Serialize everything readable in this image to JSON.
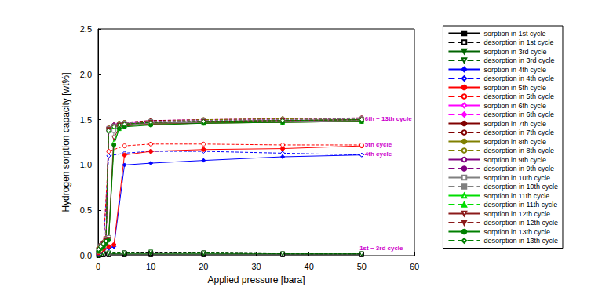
{
  "chart_data": {
    "type": "line",
    "x_label": "Applied pressure [bara]",
    "y_label": "Hydrogen sorption capacity [wt%]",
    "xlim": [
      0,
      60
    ],
    "xticks": [
      0,
      10,
      20,
      30,
      40,
      50,
      60
    ],
    "ylim": [
      0,
      2.5
    ],
    "yticks": [
      {
        "value": 0,
        "label": "0.0"
      },
      0.5,
      {
        "value": 1,
        "label": "1.0"
      },
      1.5,
      {
        "value": 2,
        "label": "2.0"
      },
      2.5
    ],
    "grid": false,
    "legend": "right",
    "annotations": [
      {
        "text": "6th ~ 13th cycle",
        "x": 50.6,
        "y": 1.51,
        "color": "#cc00cc"
      },
      {
        "text": "5th cycle",
        "x": 50.6,
        "y": 1.22,
        "color": "#cc00cc"
      },
      {
        "text": "4th cycle",
        "x": 50.6,
        "y": 1.12,
        "color": "#cc00cc"
      },
      {
        "text": "1st ~ 3rd cycle",
        "x": 49.6,
        "y": 0.08,
        "color": "#cc00cc"
      }
    ],
    "series": [
      {
        "name": "sorption in 1st cycle",
        "color": "#000000",
        "marker": "square",
        "line_style": "solid",
        "x": [
          0.1,
          0.5,
          1,
          2,
          5,
          10,
          20,
          35,
          50
        ],
        "values": [
          0.0,
          0.01,
          0.01,
          0.01,
          0.01,
          0.01,
          0.01,
          0.01,
          0.01
        ]
      },
      {
        "name": "desorption in 1st cycle",
        "color": "#000000",
        "marker": "square-open",
        "line_style": "dashed",
        "x": [
          0.1,
          0.5,
          1,
          2,
          5,
          10,
          20,
          35,
          50
        ],
        "values": [
          0.01,
          0.02,
          0.02,
          0.02,
          0.03,
          0.03,
          0.03,
          0.02,
          0.02
        ]
      },
      {
        "name": "sorption in 3rd cycle",
        "color": "#006400",
        "marker": "triangle-down",
        "line_style": "solid",
        "x": [
          0.1,
          0.5,
          1,
          2,
          5,
          10,
          20,
          35,
          50
        ],
        "values": [
          0.0,
          0.01,
          0.02,
          0.02,
          0.02,
          0.02,
          0.02,
          0.02,
          0.02
        ]
      },
      {
        "name": "desorption in 3rd cycle",
        "color": "#006400",
        "marker": "triangle-down-open",
        "line_style": "dashed",
        "x": [
          0.1,
          0.5,
          1,
          2,
          5,
          10,
          20,
          35,
          50
        ],
        "values": [
          0.01,
          0.02,
          0.03,
          0.03,
          0.03,
          0.04,
          0.03,
          0.02,
          0.02
        ]
      },
      {
        "name": "sorption in 4th cycle",
        "color": "#0000ff",
        "marker": "diamond",
        "line_style": "solid",
        "x": [
          0.1,
          0.5,
          1,
          2,
          3,
          5,
          10,
          20,
          35,
          50
        ],
        "values": [
          0.02,
          0.04,
          0.06,
          0.08,
          0.1,
          1.0,
          1.02,
          1.05,
          1.09,
          1.11
        ]
      },
      {
        "name": "desorption in 4th cycle",
        "color": "#0000ff",
        "marker": "diamond-open",
        "line_style": "dashed",
        "x": [
          0.1,
          0.5,
          1,
          2,
          5,
          10,
          20,
          35,
          50
        ],
        "values": [
          0.03,
          0.05,
          0.1,
          1.1,
          1.13,
          1.15,
          1.15,
          1.13,
          1.11
        ]
      },
      {
        "name": "sorption in 5th cycle",
        "color": "#ff0000",
        "marker": "circle",
        "line_style": "solid",
        "x": [
          0.1,
          0.5,
          1,
          2,
          3,
          5,
          10,
          20,
          35,
          50
        ],
        "values": [
          0.03,
          0.05,
          0.07,
          0.1,
          0.12,
          1.11,
          1.15,
          1.17,
          1.18,
          1.21
        ]
      },
      {
        "name": "desorption in 5th cycle",
        "color": "#ff0000",
        "marker": "circle-open",
        "line_style": "dashed",
        "x": [
          0.1,
          0.5,
          1,
          2,
          5,
          10,
          20,
          35,
          50
        ],
        "values": [
          0.04,
          0.06,
          0.12,
          1.15,
          1.21,
          1.23,
          1.23,
          1.22,
          1.22
        ]
      },
      {
        "name": "sorption in 6th cycle",
        "color": "#ff00ff",
        "marker": "diamond-open",
        "line_style": "solid",
        "x": [
          0.1,
          0.5,
          1,
          1.5,
          2,
          3,
          4,
          5,
          10,
          20,
          35,
          50
        ],
        "values": [
          0.05,
          0.1,
          0.14,
          0.17,
          1.4,
          1.43,
          1.45,
          1.46,
          1.47,
          1.48,
          1.49,
          1.5
        ]
      },
      {
        "name": "desorption in 6th cycle",
        "color": "#ff00ff",
        "marker": "diamond",
        "line_style": "dashed",
        "x": [
          0.1,
          0.5,
          1,
          1.5,
          2,
          3,
          4,
          5,
          10,
          20,
          35,
          50
        ],
        "values": [
          0.08,
          0.12,
          0.15,
          0.2,
          1.42,
          1.45,
          1.46,
          1.47,
          1.49,
          1.5,
          1.51,
          1.52
        ]
      },
      {
        "name": "sorption in 7th cycle",
        "color": "#800000",
        "marker": "circle",
        "line_style": "solid",
        "x": [
          0.1,
          0.5,
          1,
          1.5,
          2,
          3,
          4,
          5,
          10,
          20,
          35,
          50
        ],
        "values": [
          0.05,
          0.1,
          0.13,
          0.16,
          1.39,
          1.42,
          1.44,
          1.45,
          1.46,
          1.48,
          1.49,
          1.5
        ]
      },
      {
        "name": "desorption in 7th cycle",
        "color": "#800000",
        "marker": "circle-open",
        "line_style": "dashed",
        "x": [
          0.1,
          0.5,
          1,
          1.5,
          2,
          3,
          4,
          5,
          10,
          20,
          35,
          50
        ],
        "values": [
          0.08,
          0.12,
          0.15,
          0.19,
          1.41,
          1.44,
          1.46,
          1.47,
          1.49,
          1.5,
          1.51,
          1.52
        ]
      },
      {
        "name": "sorption in 8th cycle",
        "color": "#808000",
        "marker": "circle",
        "line_style": "solid",
        "x": [
          0.1,
          0.5,
          1,
          1.5,
          2,
          3,
          4,
          5,
          10,
          20,
          35,
          50
        ],
        "values": [
          0.05,
          0.09,
          0.13,
          0.16,
          1.38,
          1.42,
          1.44,
          1.45,
          1.46,
          1.47,
          1.48,
          1.49
        ]
      },
      {
        "name": "desorption in 8th cycle",
        "color": "#808000",
        "marker": "circle-open",
        "line_style": "dashed",
        "x": [
          0.1,
          0.5,
          1,
          1.5,
          2,
          3,
          4,
          5,
          10,
          20,
          35,
          50
        ],
        "values": [
          0.08,
          0.11,
          0.15,
          0.19,
          1.41,
          1.44,
          1.46,
          1.47,
          1.48,
          1.5,
          1.51,
          1.51
        ]
      },
      {
        "name": "sorption in 9th cycle",
        "color": "#800080",
        "marker": "circle-open",
        "line_style": "solid",
        "x": [
          0.1,
          0.5,
          1,
          1.5,
          2,
          3,
          4,
          5,
          10,
          20,
          35,
          50
        ],
        "values": [
          0.05,
          0.09,
          0.12,
          0.15,
          1.37,
          1.41,
          1.43,
          1.45,
          1.46,
          1.47,
          1.48,
          1.49
        ]
      },
      {
        "name": "desorption in 9th cycle",
        "color": "#800080",
        "marker": "circle",
        "line_style": "dashed",
        "x": [
          0.1,
          0.5,
          1,
          1.5,
          2,
          3,
          4,
          5,
          10,
          20,
          35,
          50
        ],
        "values": [
          0.07,
          0.11,
          0.14,
          0.18,
          1.4,
          1.44,
          1.45,
          1.46,
          1.48,
          1.49,
          1.5,
          1.51
        ]
      },
      {
        "name": "sorption in 10th cycle",
        "color": "#808080",
        "marker": "square-open",
        "line_style": "solid",
        "x": [
          0.1,
          0.5,
          1,
          1.5,
          2,
          3,
          4,
          5,
          10,
          20,
          35,
          50
        ],
        "values": [
          0.05,
          0.09,
          0.12,
          0.15,
          0.2,
          1.38,
          1.43,
          1.44,
          1.46,
          1.47,
          1.48,
          1.49
        ]
      },
      {
        "name": "desorption in 10th cycle",
        "color": "#808080",
        "marker": "square",
        "line_style": "dashed",
        "x": [
          0.1,
          0.5,
          1,
          1.5,
          2,
          3,
          4,
          5,
          10,
          20,
          35,
          50
        ],
        "values": [
          0.07,
          0.11,
          0.14,
          0.18,
          1.4,
          1.43,
          1.45,
          1.46,
          1.48,
          1.49,
          1.5,
          1.51
        ]
      },
      {
        "name": "sorption in 11th cycle",
        "color": "#00dd00",
        "marker": "triangle-open",
        "line_style": "solid",
        "x": [
          0.1,
          0.5,
          1,
          1.5,
          2,
          3,
          4,
          5,
          10,
          20,
          35,
          50
        ],
        "values": [
          0.05,
          0.08,
          0.11,
          0.14,
          0.18,
          1.25,
          1.4,
          1.43,
          1.45,
          1.46,
          1.47,
          1.48
        ]
      },
      {
        "name": "desorption in 11th cycle",
        "color": "#00dd00",
        "marker": "triangle",
        "line_style": "dashed",
        "x": [
          0.1,
          0.5,
          1,
          1.5,
          2,
          3,
          4,
          5,
          10,
          20,
          35,
          50
        ],
        "values": [
          0.07,
          0.1,
          0.13,
          0.17,
          1.38,
          1.42,
          1.44,
          1.45,
          1.47,
          1.48,
          1.49,
          1.5
        ]
      },
      {
        "name": "sorption in 12th cycle",
        "color": "#8b1a1a",
        "marker": "triangle-down-open",
        "line_style": "solid",
        "x": [
          0.1,
          0.5,
          1,
          1.5,
          2,
          3,
          4,
          5,
          10,
          20,
          35,
          50
        ],
        "values": [
          0.05,
          0.08,
          0.11,
          0.14,
          0.18,
          1.3,
          1.41,
          1.43,
          1.45,
          1.46,
          1.47,
          1.48
        ]
      },
      {
        "name": "desorption in 12th cycle",
        "color": "#8b1a1a",
        "marker": "triangle-down",
        "line_style": "dashed",
        "x": [
          0.1,
          0.5,
          1,
          1.5,
          2,
          3,
          4,
          5,
          10,
          20,
          35,
          50
        ],
        "values": [
          0.07,
          0.1,
          0.13,
          0.17,
          1.39,
          1.42,
          1.44,
          1.45,
          1.47,
          1.48,
          1.49,
          1.5
        ]
      },
      {
        "name": "sorption in 13th cycle",
        "color": "#008000",
        "marker": "circle",
        "line_style": "solid",
        "x": [
          0.1,
          0.5,
          1,
          1.5,
          2,
          3,
          4,
          5,
          10,
          20,
          35,
          50
        ],
        "values": [
          0.05,
          0.08,
          0.1,
          0.13,
          0.17,
          1.22,
          1.4,
          1.42,
          1.44,
          1.46,
          1.47,
          1.48
        ]
      },
      {
        "name": "desorption in 13th cycle",
        "color": "#008000",
        "marker": "diamond-open",
        "line_style": "dashed",
        "x": [
          0.1,
          0.5,
          1,
          1.5,
          2,
          3,
          4,
          5,
          10,
          20,
          35,
          50
        ],
        "values": [
          0.07,
          0.1,
          0.13,
          0.16,
          1.38,
          1.42,
          1.44,
          1.45,
          1.47,
          1.48,
          1.49,
          1.5
        ]
      }
    ]
  }
}
